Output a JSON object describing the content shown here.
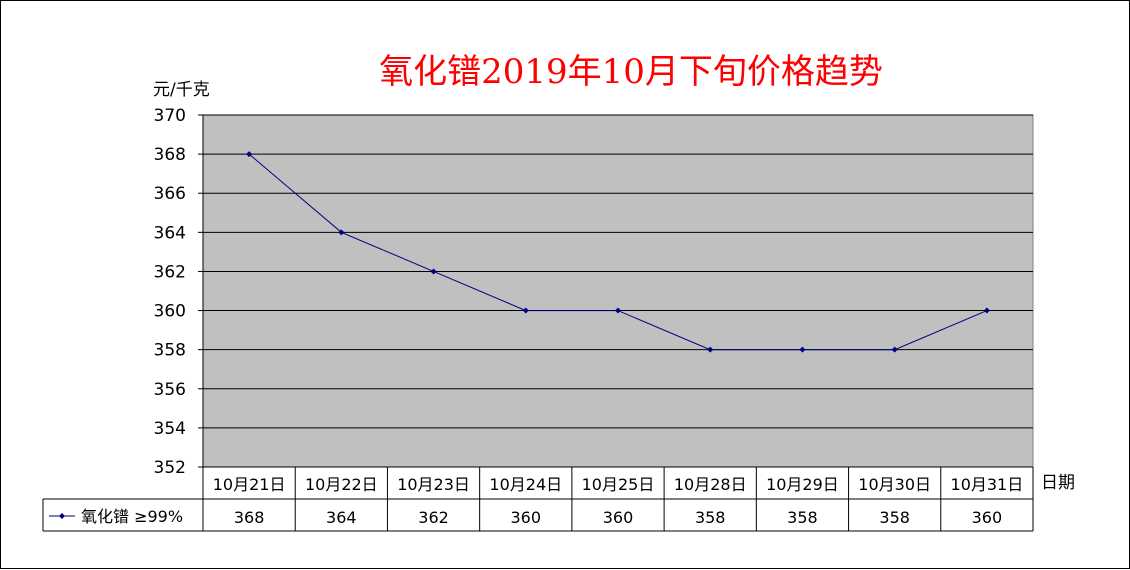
{
  "chart_data": {
    "type": "line",
    "title": "氧化镨2019年10月下旬价格趋势",
    "ylabel": "元/千克",
    "xlabel": "日期",
    "categories": [
      "10月21日",
      "10月22日",
      "10月23日",
      "10月24日",
      "10月25日",
      "10月28日",
      "10月29日",
      "10月30日",
      "10月31日"
    ],
    "series": [
      {
        "name": "氧化镨 ≥99%",
        "values": [
          368,
          364,
          362,
          360,
          360,
          358,
          358,
          358,
          360
        ]
      }
    ],
    "ylim": [
      352,
      370
    ],
    "yticks": [
      "352",
      "354",
      "356",
      "358",
      "360",
      "362",
      "364",
      "366",
      "368",
      "370"
    ],
    "grid": true,
    "data_table": true,
    "colors": {
      "title": "#ff0000",
      "plot_background": "#c0c0c0",
      "series_line": "#000080",
      "gridline": "#000000"
    }
  }
}
